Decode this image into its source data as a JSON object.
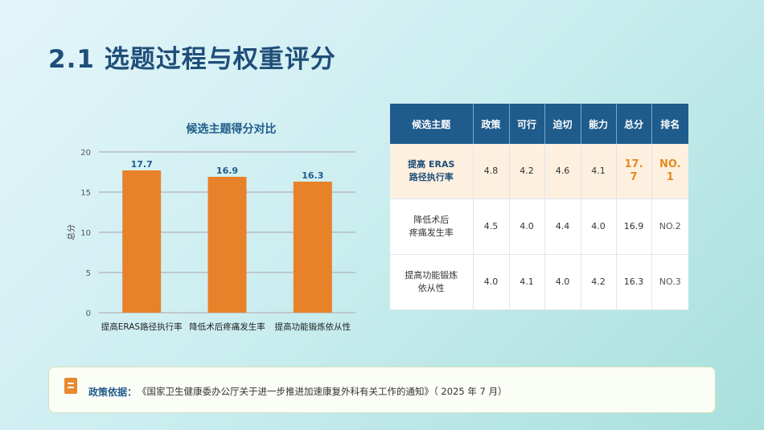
{
  "slide": {
    "title": "2.1  选题过程与权重评分"
  },
  "chart_data": {
    "type": "bar",
    "title": "候选主题得分对比",
    "categories": [
      "提高ERAS路径执行率",
      "降低术后疼痛发生率",
      "提高功能锻炼依从性"
    ],
    "values": [
      17.7,
      16.9,
      16.3
    ],
    "data_labels": [
      "17.7",
      "16.9",
      "16.3"
    ],
    "xlabel": "",
    "ylabel": "总分",
    "ylim": [
      0,
      20
    ],
    "yticks": [
      "0",
      "5",
      "10",
      "15",
      "20"
    ],
    "grid": true,
    "bar_color": "#e8822a",
    "label_color": "#1f5b8b"
  },
  "table": {
    "headers": [
      "候选主题",
      "政策",
      "可行",
      "迫切",
      "能力",
      "总分",
      "排名"
    ],
    "rows": [
      {
        "name_lines": [
          "提高 ERAS",
          "路径执行率"
        ],
        "policy": "4.8",
        "feasible": "4.2",
        "urgent": "4.6",
        "ability": "4.1",
        "total_lines": [
          "17.",
          "7"
        ],
        "rank_lines": [
          "NO.",
          "1"
        ]
      },
      {
        "name_lines": [
          "降低术后",
          "疼痛发生率"
        ],
        "policy": "4.5",
        "feasible": "4.0",
        "urgent": "4.4",
        "ability": "4.0",
        "total": "16.9",
        "rank": "NO.2"
      },
      {
        "name_lines": [
          "提高功能锻炼",
          "依从性"
        ],
        "policy": "4.0",
        "feasible": "4.1",
        "urgent": "4.0",
        "ability": "4.2",
        "total": "16.3",
        "rank": "NO.3"
      }
    ]
  },
  "note": {
    "label": "政策依据：",
    "text": "《国家卫生健康委办公厅关于进一步推进加速康复外科有关工作的通知》（ 2025 年 7 月）",
    "icon": "document-icon",
    "icon_color": "#e8892f"
  },
  "colors": {
    "title": "#1f4e79",
    "table_header": "#1f5b8b",
    "highlight_row": "#fdf0df",
    "accent": "#e68a22"
  }
}
